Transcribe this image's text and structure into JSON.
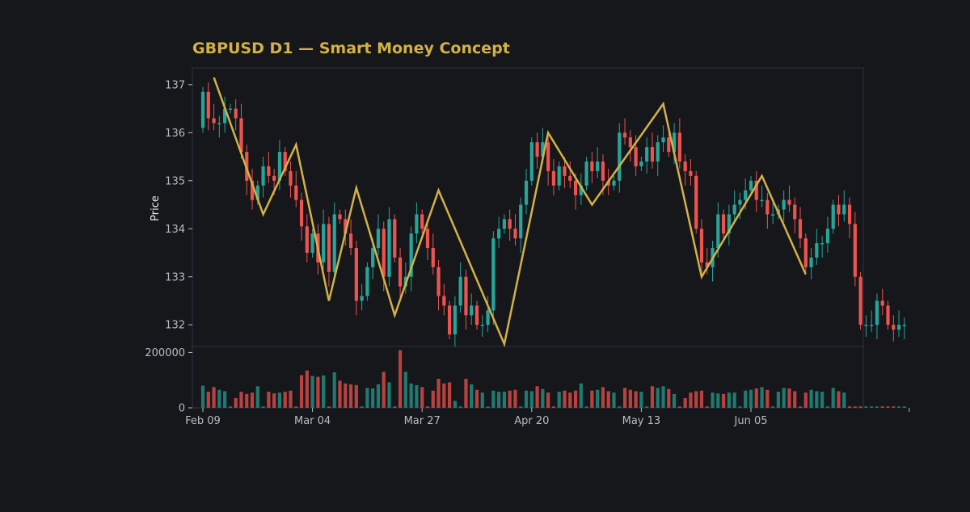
{
  "chart_data": {
    "type": "candlestick",
    "title": "GBPUSD D1 — Smart Money Concept",
    "ylabel": "Price",
    "xlabel": "",
    "ylim": [
      131.55,
      137.35
    ],
    "volume_ylim": [
      0,
      210000
    ],
    "y_ticks": [
      132,
      133,
      134,
      135,
      136,
      137
    ],
    "volume_ticks": [
      0,
      200000
    ],
    "volume_tick_labels": [
      "0",
      "200000"
    ],
    "x_tick_labels": [
      "Feb 09",
      "Mar 04",
      "Mar 27",
      "Apr 20",
      "May 13",
      "Jun 05"
    ],
    "x_tick_index": [
      0,
      20,
      40,
      60,
      80,
      100
    ],
    "grid": false,
    "colors": {
      "background": "#15171b",
      "bull": "#26a69a",
      "bear": "#ef5350",
      "zigzag": "#d4b146",
      "title": "#d4b146",
      "frame": "#2b3140"
    },
    "candles": {
      "open": [
        136.1,
        136.85,
        136.3,
        136.2,
        136.2,
        136.5,
        136.5,
        136.3,
        135.6,
        135.0,
        134.6,
        134.9,
        135.3,
        135.1,
        135.0,
        135.6,
        135.2,
        134.9,
        134.6,
        134.05,
        133.5,
        133.9,
        133.3,
        134.1,
        133.1,
        134.3,
        134.2,
        133.9,
        133.6,
        132.5,
        132.6,
        133.2,
        133.6,
        134.0,
        133.0,
        134.2,
        133.4,
        132.8,
        133.0,
        133.9,
        134.3,
        134.0,
        133.6,
        133.2,
        132.6,
        132.4,
        131.8,
        132.4,
        133.0,
        132.2,
        132.4,
        132.0,
        132.0,
        132.3,
        133.8,
        134.0,
        134.2,
        134.0,
        133.8,
        134.5,
        135.0,
        135.8,
        135.5,
        135.8,
        135.2,
        134.9,
        135.3,
        135.1,
        135.0,
        134.7,
        134.9,
        135.4,
        135.2,
        135.4,
        135.0,
        134.9,
        135.0,
        136.0,
        135.9,
        135.7,
        135.3,
        135.4,
        135.7,
        135.4,
        135.8,
        135.9,
        135.6,
        136.0,
        135.4,
        135.2,
        135.1,
        134.0,
        133.3,
        133.2,
        133.6,
        134.3,
        133.9,
        134.3,
        134.5,
        134.6,
        134.8,
        135.0,
        134.6,
        134.6,
        134.3,
        134.3,
        134.4,
        134.6,
        134.5,
        134.2,
        133.8,
        133.2,
        133.4,
        133.7,
        133.7,
        134.0,
        134.5,
        134.3,
        134.5,
        134.1,
        133.0,
        132.0,
        132.0,
        132.0,
        132.5,
        132.4,
        132.0,
        131.9,
        132.0
      ],
      "close": [
        136.85,
        136.3,
        136.2,
        136.2,
        136.5,
        136.5,
        136.3,
        135.6,
        135.0,
        134.6,
        134.9,
        135.3,
        135.1,
        135.0,
        135.6,
        135.2,
        134.9,
        134.6,
        134.05,
        133.5,
        133.9,
        133.3,
        134.1,
        133.1,
        134.3,
        134.2,
        133.9,
        133.6,
        132.5,
        132.6,
        133.2,
        133.6,
        134.0,
        133.0,
        134.2,
        133.4,
        132.8,
        133.0,
        133.9,
        134.3,
        134.0,
        133.6,
        133.2,
        132.6,
        132.4,
        131.8,
        132.4,
        133.0,
        132.2,
        132.4,
        132.0,
        132.0,
        132.3,
        133.8,
        134.0,
        134.2,
        134.0,
        133.8,
        134.5,
        135.0,
        135.8,
        135.5,
        135.8,
        135.2,
        134.9,
        135.3,
        135.1,
        135.0,
        134.7,
        134.9,
        135.4,
        135.2,
        135.4,
        135.0,
        134.9,
        135.0,
        136.0,
        135.9,
        135.7,
        135.3,
        135.4,
        135.7,
        135.4,
        135.8,
        135.9,
        135.6,
        136.0,
        135.4,
        135.2,
        135.1,
        134.0,
        133.3,
        133.2,
        133.6,
        134.3,
        133.9,
        134.3,
        134.5,
        134.6,
        134.8,
        135.0,
        134.6,
        134.6,
        134.3,
        134.3,
        134.4,
        134.6,
        134.5,
        134.2,
        133.8,
        133.2,
        133.4,
        133.7,
        133.7,
        134.0,
        134.5,
        134.3,
        134.5,
        134.1,
        133.0,
        132.0,
        132.0,
        132.0,
        132.5,
        132.4,
        132.0,
        131.9,
        132.0,
        132.0
      ],
      "volume": [
        80000,
        58000,
        75000,
        65000,
        60000,
        5000,
        35000,
        58000,
        50000,
        55000,
        78000,
        5000,
        58000,
        52000,
        55000,
        58000,
        62000,
        5000,
        118000,
        135000,
        115000,
        112000,
        117000,
        5000,
        128000,
        98000,
        88000,
        85000,
        82000,
        5000,
        72000,
        70000,
        85000,
        130000,
        92000,
        5000,
        208000,
        130000,
        88000,
        82000,
        75000,
        5000,
        62000,
        105000,
        88000,
        92000,
        25000,
        5000,
        105000,
        85000,
        65000,
        55000,
        5000,
        62000,
        58000,
        58000,
        62000,
        65000,
        5000,
        62000,
        60000,
        78000,
        68000,
        55000,
        5000,
        58000,
        62000,
        55000,
        62000,
        88000,
        5000,
        62000,
        65000,
        75000,
        60000,
        55000,
        5000,
        72000,
        65000,
        60000,
        58000,
        5000,
        78000,
        72000,
        78000,
        68000,
        50000,
        5000,
        35000,
        55000,
        60000,
        62000,
        5000,
        55000,
        52000,
        50000,
        55000,
        55000,
        5000,
        62000,
        65000,
        70000,
        75000,
        65000,
        5000,
        58000,
        72000,
        70000,
        60000,
        5000,
        55000,
        65000,
        60000,
        58000,
        5000,
        72000,
        60000,
        55000,
        5000,
        5000,
        5000,
        5000,
        5000,
        5000,
        5000,
        5000,
        5000,
        5000,
        5000
      ]
    },
    "zigzag": {
      "index": [
        2,
        11,
        17,
        23,
        28,
        35,
        43,
        55,
        63,
        71,
        84,
        91,
        102,
        110
      ],
      "price": [
        137.15,
        134.3,
        135.75,
        132.5,
        134.85,
        132.2,
        134.8,
        131.6,
        136.0,
        134.5,
        136.6,
        133.0,
        135.1,
        133.05
      ]
    }
  }
}
